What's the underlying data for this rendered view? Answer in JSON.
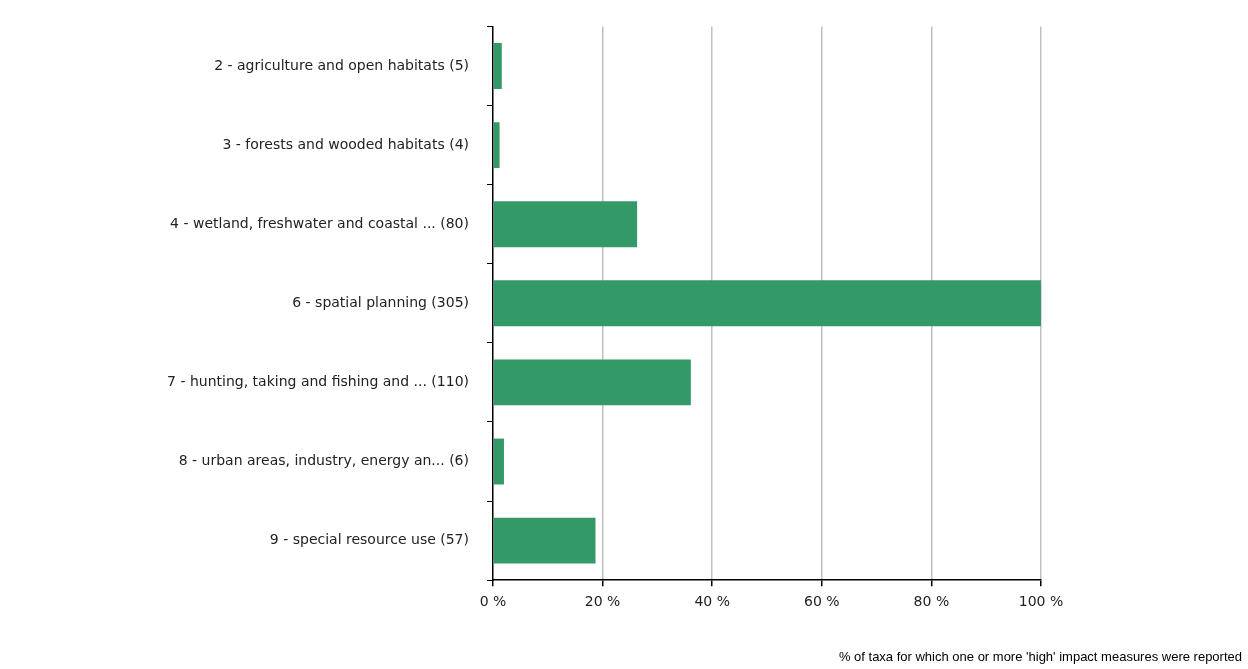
{
  "chart_data": {
    "type": "bar",
    "orientation": "horizontal",
    "xlabel": "% of taxa for which one or more 'high' impact measures were reported",
    "categories": [
      "2 - agriculture and open habitats (5)",
      "3 - forests and wooded habitats (4)",
      "4 - wetland, freshwater and coastal ... (80)",
      "6 - spatial planning (305)",
      "7 - hunting, taking and fishing and ... (110)",
      "8 - urban areas, industry, energy an... (6)",
      "9 - special resource use (57)"
    ],
    "values": [
      1.6,
      1.2,
      26.3,
      100,
      36.1,
      2.0,
      18.7
    ],
    "color": "#339966",
    "xlim": [
      0,
      100
    ],
    "xticks": [
      {
        "value": 0,
        "label": "0 %"
      },
      {
        "value": 20,
        "label": "20 %"
      },
      {
        "value": 40,
        "label": "40 %"
      },
      {
        "value": 60,
        "label": "60 %"
      },
      {
        "value": 80,
        "label": "80 %"
      },
      {
        "value": 100,
        "label": "100 %"
      }
    ],
    "grid": "x",
    "legend": false
  }
}
